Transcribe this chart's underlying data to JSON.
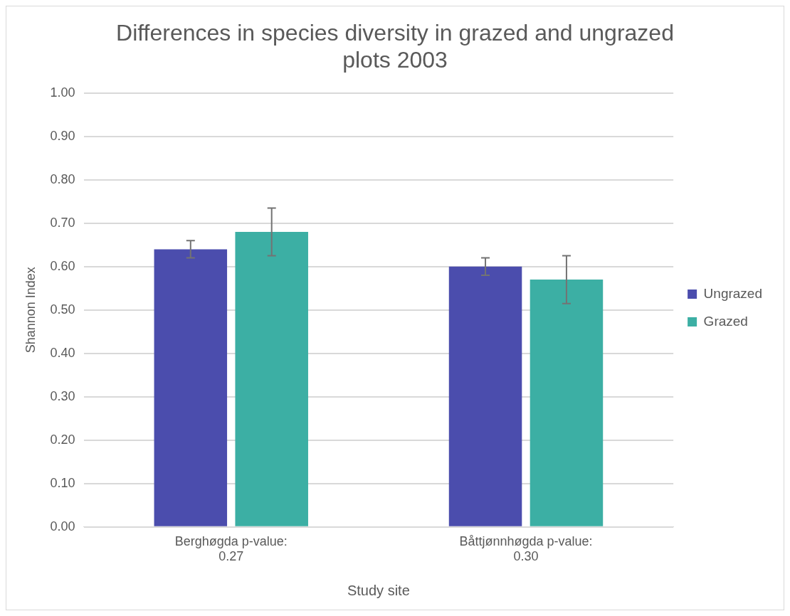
{
  "chart_data": {
    "type": "bar",
    "title": "Differences in species diversity in grazed and ungrazed plots 2003",
    "xlabel": "Study site",
    "ylabel": "Shannon Index",
    "categories": [
      "Berghøgda p-value: 0.27",
      "Båttjønnhøgda p-value: 0.30"
    ],
    "series": [
      {
        "name": "Ungrazed",
        "color": "#4b4dad",
        "values": [
          0.64,
          0.6
        ],
        "errors": [
          0.02,
          0.02
        ]
      },
      {
        "name": "Grazed",
        "color": "#3cafa4",
        "values": [
          0.68,
          0.57
        ],
        "errors": [
          0.055,
          0.055
        ]
      }
    ],
    "ylim": [
      0,
      1
    ],
    "yticks": [
      {
        "value": 0,
        "label": "0.00"
      },
      {
        "value": 0.1,
        "label": "0.10"
      },
      {
        "value": 0.2,
        "label": "0.20"
      },
      {
        "value": 0.3,
        "label": "0.30"
      },
      {
        "value": 0.4,
        "label": "0.40"
      },
      {
        "value": 0.5,
        "label": "0.50"
      },
      {
        "value": 0.6,
        "label": "0.60"
      },
      {
        "value": 0.7,
        "label": "0.70"
      },
      {
        "value": 0.8,
        "label": "0.80"
      },
      {
        "value": 0.9,
        "label": "0.90"
      },
      {
        "value": 1,
        "label": "1.00"
      }
    ],
    "grid": "y",
    "legend": "right"
  }
}
